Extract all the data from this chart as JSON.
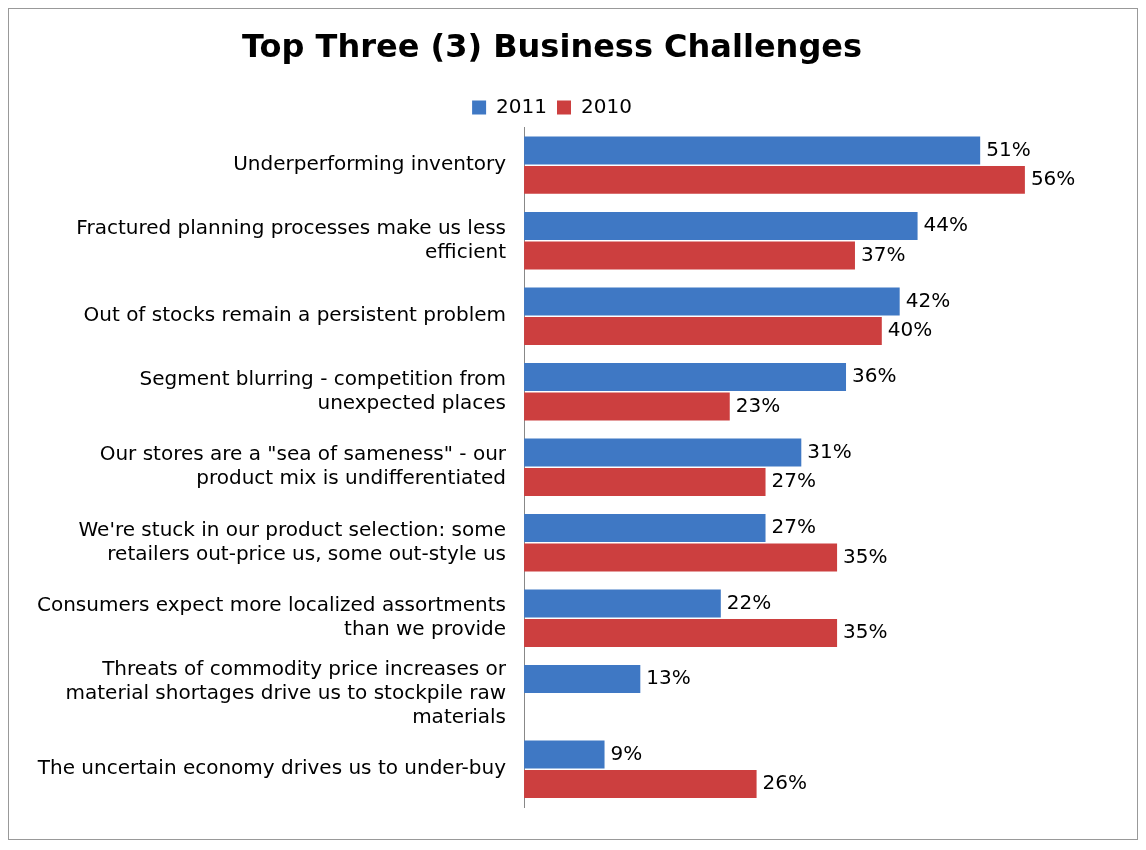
{
  "chart_data": {
    "type": "bar",
    "orientation": "horizontal",
    "title": "Top Three (3) Business Challenges",
    "legend": "top",
    "categories": [
      "Underperforming inventory",
      "Fractured planning processes make us less efficient",
      "Out of stocks remain a persistent problem",
      "Segment blurring - competition from unexpected places",
      "Our stores are a \"sea of sameness\" - our product mix is undifferentiated",
      "We're stuck in our product selection: some retailers out-price us, some out-style us",
      "Consumers expect more localized assortments than we provide",
      "Threats of commodity price increases or material shortages drive us to stockpile raw materials",
      "The uncertain economy drives us to under-buy"
    ],
    "series": [
      {
        "name": "2011",
        "color": "#3f78c4",
        "values": [
          51,
          44,
          42,
          36,
          31,
          27,
          22,
          13,
          9
        ],
        "value_labels": [
          "51%",
          "44%",
          "42%",
          "36%",
          "31%",
          "27%",
          "22%",
          "13%",
          "9%"
        ]
      },
      {
        "name": "2010",
        "color": "#cc3f3f",
        "values": [
          56,
          37,
          40,
          23,
          27,
          35,
          35,
          null,
          26
        ],
        "value_labels": [
          "56%",
          "37%",
          "40%",
          "23%",
          "27%",
          "35%",
          "35%",
          null,
          "26%"
        ]
      }
    ]
  }
}
